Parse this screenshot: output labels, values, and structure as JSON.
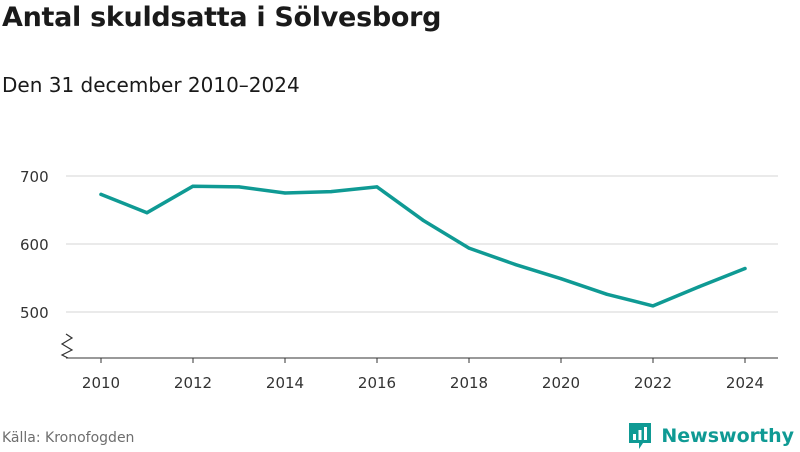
{
  "title": "Antal skuldsatta i Sölvesborg",
  "subtitle": "Den 31 december 2010–2024",
  "source": "Källa: Kronofogden",
  "brand": {
    "name": "Newsworthy",
    "icon": "newsworthy-logo-icon",
    "color": "#0f9a94"
  },
  "chart_data": {
    "type": "line",
    "title": "Antal skuldsatta i Sölvesborg",
    "subtitle": "Den 31 december 2010–2024",
    "xlabel": "",
    "ylabel": "",
    "x": [
      2010,
      2011,
      2012,
      2013,
      2014,
      2015,
      2016,
      2017,
      2018,
      2019,
      2020,
      2021,
      2022,
      2023,
      2024
    ],
    "series": [
      {
        "values": [
          673,
          646,
          685,
          684,
          675,
          677,
          684,
          635,
          594,
          570,
          549,
          526,
          509,
          537,
          564
        ],
        "color": "#0f9a94"
      }
    ],
    "xticks": [
      "2010",
      "2012",
      "2014",
      "2016",
      "2018",
      "2020",
      "2022",
      "2024"
    ],
    "yticks": [
      "500",
      "600",
      "700"
    ],
    "ylim": [
      500,
      700
    ],
    "xlim": [
      2010,
      2024
    ],
    "y_axis_break": true,
    "grid": "horizontal",
    "legend": "none"
  }
}
